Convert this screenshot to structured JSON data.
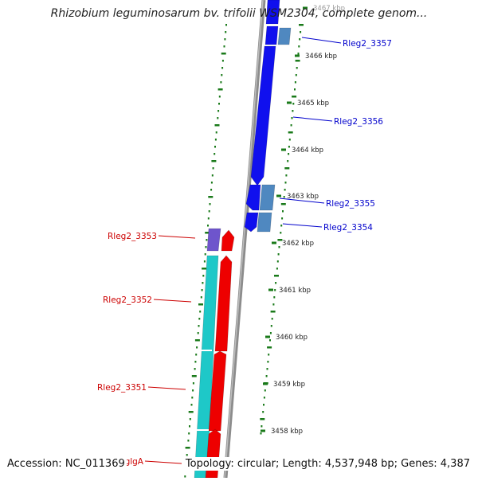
{
  "title": "Rhizobium leguminosarum bv. trifolii WSM2304, complete genom...",
  "footer": {
    "accession": "Accession: NC_011369",
    "topology": "Topology: circular; Length: 4,537,948 bp; Genes: 4,387"
  },
  "colors": {
    "backbone": "#8c8c8c",
    "forward_label": "#0000cc",
    "reverse_label": "#cc0000",
    "gc_ticks": "#1a7a1a",
    "blue_gene": "#1010ee",
    "steel_gene": "#4f88c0",
    "violet_gene": "#6e55cc",
    "cyan_gene": "#1ec8c8",
    "red_gene": "#ee0000"
  },
  "scale": {
    "unit": "kbp",
    "ticks": [
      {
        "label": "3467 kbp",
        "value": 3467
      },
      {
        "label": "3466 kbp",
        "value": 3466
      },
      {
        "label": "3465 kbp",
        "value": 3465
      },
      {
        "label": "3464 kbp",
        "value": 3464
      },
      {
        "label": "3463 kbp",
        "value": 3463
      },
      {
        "label": "3462 kbp",
        "value": 3462
      },
      {
        "label": "3461 kbp",
        "value": 3461
      },
      {
        "label": "3460 kbp",
        "value": 3460
      },
      {
        "label": "3459 kbp",
        "value": 3459
      },
      {
        "label": "3458 kbp",
        "value": 3458
      }
    ]
  },
  "labels": {
    "forward": [
      "Rleg2_3357",
      "Rleg2_3356",
      "Rleg2_3355",
      "Rleg2_3354"
    ],
    "reverse": [
      "Rleg2_3353",
      "Rleg2_3352",
      "Rleg2_3351",
      "glgA"
    ]
  }
}
